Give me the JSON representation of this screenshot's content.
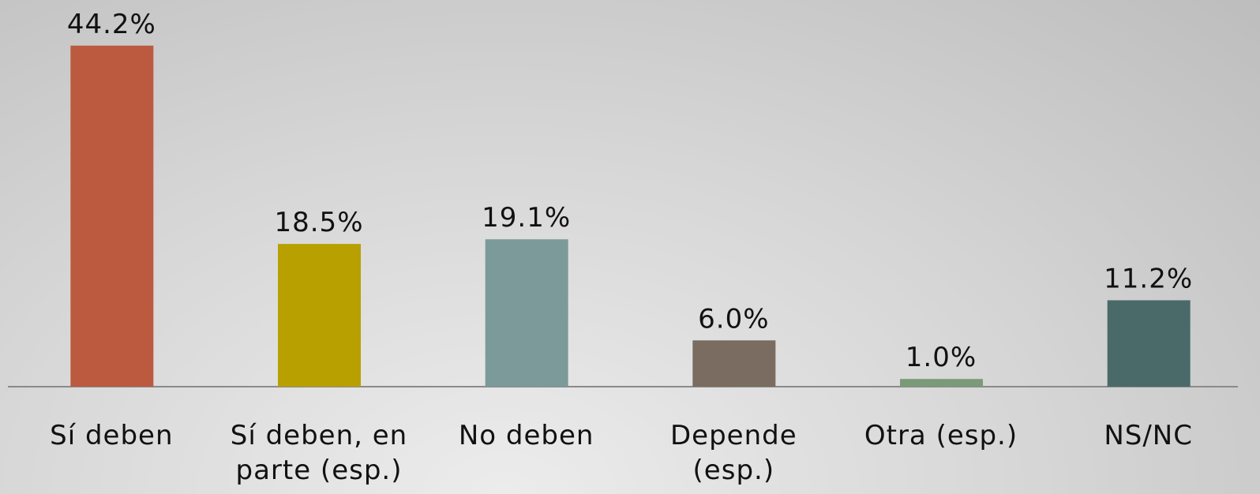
{
  "chart_data": {
    "type": "bar",
    "categories": [
      "Sí deben",
      "Sí deben, en parte (esp.)",
      "No deben",
      "Depende (esp.)",
      "Otra (esp.)",
      "NS/NC"
    ],
    "values": [
      44.2,
      18.5,
      19.1,
      6.0,
      1.0,
      11.2
    ],
    "value_labels": [
      "44.2%",
      "18.5%",
      "19.1%",
      "6.0%",
      "1.0%",
      "11.2%"
    ],
    "colors": [
      "#bc5a40",
      "#b8a000",
      "#7c9a9a",
      "#7a6c60",
      "#7a9a78",
      "#4a6a6a"
    ],
    "ylim": [
      0,
      45
    ]
  }
}
